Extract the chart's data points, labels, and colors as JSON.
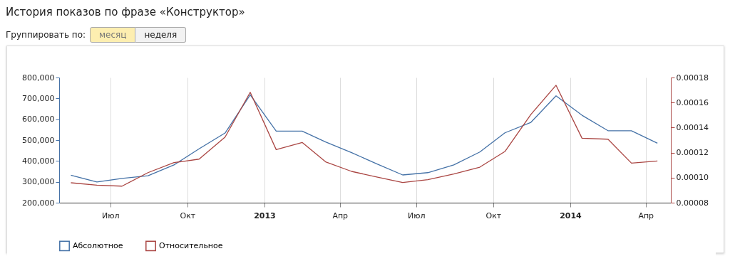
{
  "chart_data": {
    "type": "line",
    "title": "История показов по фразе «Конструктор»",
    "annotations": [
      "Группировать по:",
      "месяц",
      "неделя"
    ],
    "x": [
      "2012-05-15",
      "2012-06-15",
      "2012-07-15",
      "2012-08-15",
      "2012-09-15",
      "2012-10-15",
      "2012-11-15",
      "2012-12-15",
      "2013-01-15",
      "2013-02-15",
      "2013-03-15",
      "2013-04-15",
      "2013-05-15",
      "2013-06-15",
      "2013-07-15",
      "2013-08-15",
      "2013-09-15",
      "2013-10-15",
      "2013-11-15",
      "2013-12-15",
      "2014-01-15",
      "2014-02-15",
      "2014-03-15",
      "2014-04-15"
    ],
    "series": [
      {
        "name": "Абсолютное",
        "color": "#4572a7",
        "values": [
          332000,
          299000,
          316000,
          329000,
          381000,
          458000,
          534000,
          717000,
          543000,
          543000,
          491000,
          440000,
          386000,
          333000,
          344000,
          381000,
          443000,
          535000,
          585000,
          712000,
          619000,
          545000,
          545000,
          485000
        ]
      },
      {
        "name": "Относительное",
        "color": "#aa4643",
        "axis": "y2",
        "values": [
          9.59e-05,
          9.4e-05,
          9.32e-05,
          0.000104,
          0.000112,
          0.0001148,
          0.0001324,
          0.0001682,
          0.0001224,
          0.0001281,
          0.0001126,
          0.000105,
          0.0001005,
          9.61e-05,
          9.84e-05,
          0.0001029,
          0.0001084,
          0.0001209,
          0.0001505,
          0.0001738,
          0.0001315,
          0.0001307,
          0.0001116,
          0.0001133
        ]
      }
    ],
    "xlim": [
      "2012-05-01",
      "2014-05-01"
    ],
    "xticks": [
      {
        "value": "2012-07-01",
        "label": "Июл"
      },
      {
        "value": "2012-10-01",
        "label": "Окт"
      },
      {
        "value": "2013-01-01",
        "label": "2013"
      },
      {
        "value": "2013-04-01",
        "label": "Апр"
      },
      {
        "value": "2013-07-01",
        "label": "Июл"
      },
      {
        "value": "2013-10-01",
        "label": "Окт"
      },
      {
        "value": "2014-01-01",
        "label": "2014"
      },
      {
        "value": "2014-04-01",
        "label": "Апр"
      }
    ],
    "ylim": [
      200000,
      800000
    ],
    "yticks": [
      {
        "value": 200000,
        "label": "200,000"
      },
      {
        "value": 300000,
        "label": "300,000"
      },
      {
        "value": 400000,
        "label": "400,000"
      },
      {
        "value": 500000,
        "label": "500,000"
      },
      {
        "value": 600000,
        "label": "600,000"
      },
      {
        "value": 700000,
        "label": "700,000"
      },
      {
        "value": 800000,
        "label": "800,000"
      }
    ],
    "y2lim": [
      8e-05,
      0.00018
    ],
    "y2ticks": [
      {
        "value": 8e-05,
        "label": "0.00008"
      },
      {
        "value": 0.0001,
        "label": "0.00010"
      },
      {
        "value": 0.00012,
        "label": "0.00012"
      },
      {
        "value": 0.00014,
        "label": "0.00014"
      },
      {
        "value": 0.00016,
        "label": "0.00016"
      },
      {
        "value": 0.00018,
        "label": "0.00018"
      }
    ],
    "grid": "x",
    "legend": "bottom left",
    "marker": "none",
    "line_style": "solid"
  }
}
